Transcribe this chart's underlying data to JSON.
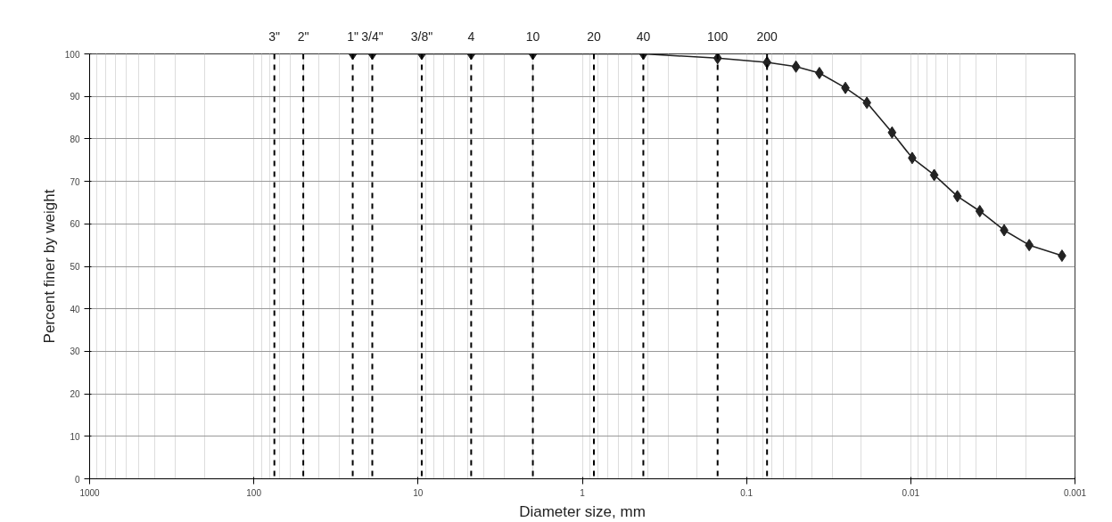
{
  "chart_data": {
    "type": "line",
    "xlabel": "Diameter size, mm",
    "ylabel": "Percent finer by weight",
    "log": "x",
    "xlim": [
      1000,
      0.001
    ],
    "xticks": [
      1000,
      100,
      10,
      1,
      0.1,
      0.01,
      0.001
    ],
    "annotations": [
      "3\"",
      "2\"",
      "1\"",
      "3/4\"",
      "3/8\"",
      "4",
      "10",
      "20",
      "40",
      "100",
      "200"
    ],
    "ylim": [
      0,
      100
    ],
    "yticks": [
      0,
      10,
      20,
      30,
      40,
      50,
      60,
      70,
      80,
      90,
      100
    ],
    "grid": true,
    "marker": "diamond",
    "line_style": "solid",
    "series": [
      {
        "color": "#222222",
        "x": [
          25,
          19,
          9.5,
          4.75,
          2.0,
          0.425,
          0.15,
          0.075,
          0.05,
          0.036,
          0.025,
          0.0185,
          0.013,
          0.0098,
          0.0072,
          0.0052,
          0.0038,
          0.0027,
          0.0019,
          0.0012
        ],
        "values": [
          100,
          100,
          100,
          100,
          100,
          100,
          99,
          98,
          97,
          95.5,
          92,
          88.5,
          81.5,
          75.5,
          71.5,
          66.5,
          63,
          58.5,
          55,
          52.5
        ]
      }
    ],
    "ref_lines": [
      {
        "axis": "x",
        "value": 75,
        "color": "#000000",
        "line_style": "dashed"
      },
      {
        "axis": "x",
        "value": 50,
        "color": "#000000",
        "line_style": "dashed"
      },
      {
        "axis": "x",
        "value": 25,
        "color": "#000000",
        "line_style": "dashed"
      },
      {
        "axis": "x",
        "value": 19,
        "color": "#000000",
        "line_style": "dashed"
      },
      {
        "axis": "x",
        "value": 9.5,
        "color": "#000000",
        "line_style": "dashed"
      },
      {
        "axis": "x",
        "value": 4.75,
        "color": "#000000",
        "line_style": "dashed"
      },
      {
        "axis": "x",
        "value": 2.0,
        "color": "#000000",
        "line_style": "dashed"
      },
      {
        "axis": "x",
        "value": 0.85,
        "color": "#000000",
        "line_style": "dashed"
      },
      {
        "axis": "x",
        "value": 0.425,
        "color": "#000000",
        "line_style": "dashed"
      },
      {
        "axis": "x",
        "value": 0.15,
        "color": "#000000",
        "line_style": "dashed"
      },
      {
        "axis": "x",
        "value": 0.075,
        "color": "#000000",
        "line_style": "dashed"
      }
    ]
  }
}
